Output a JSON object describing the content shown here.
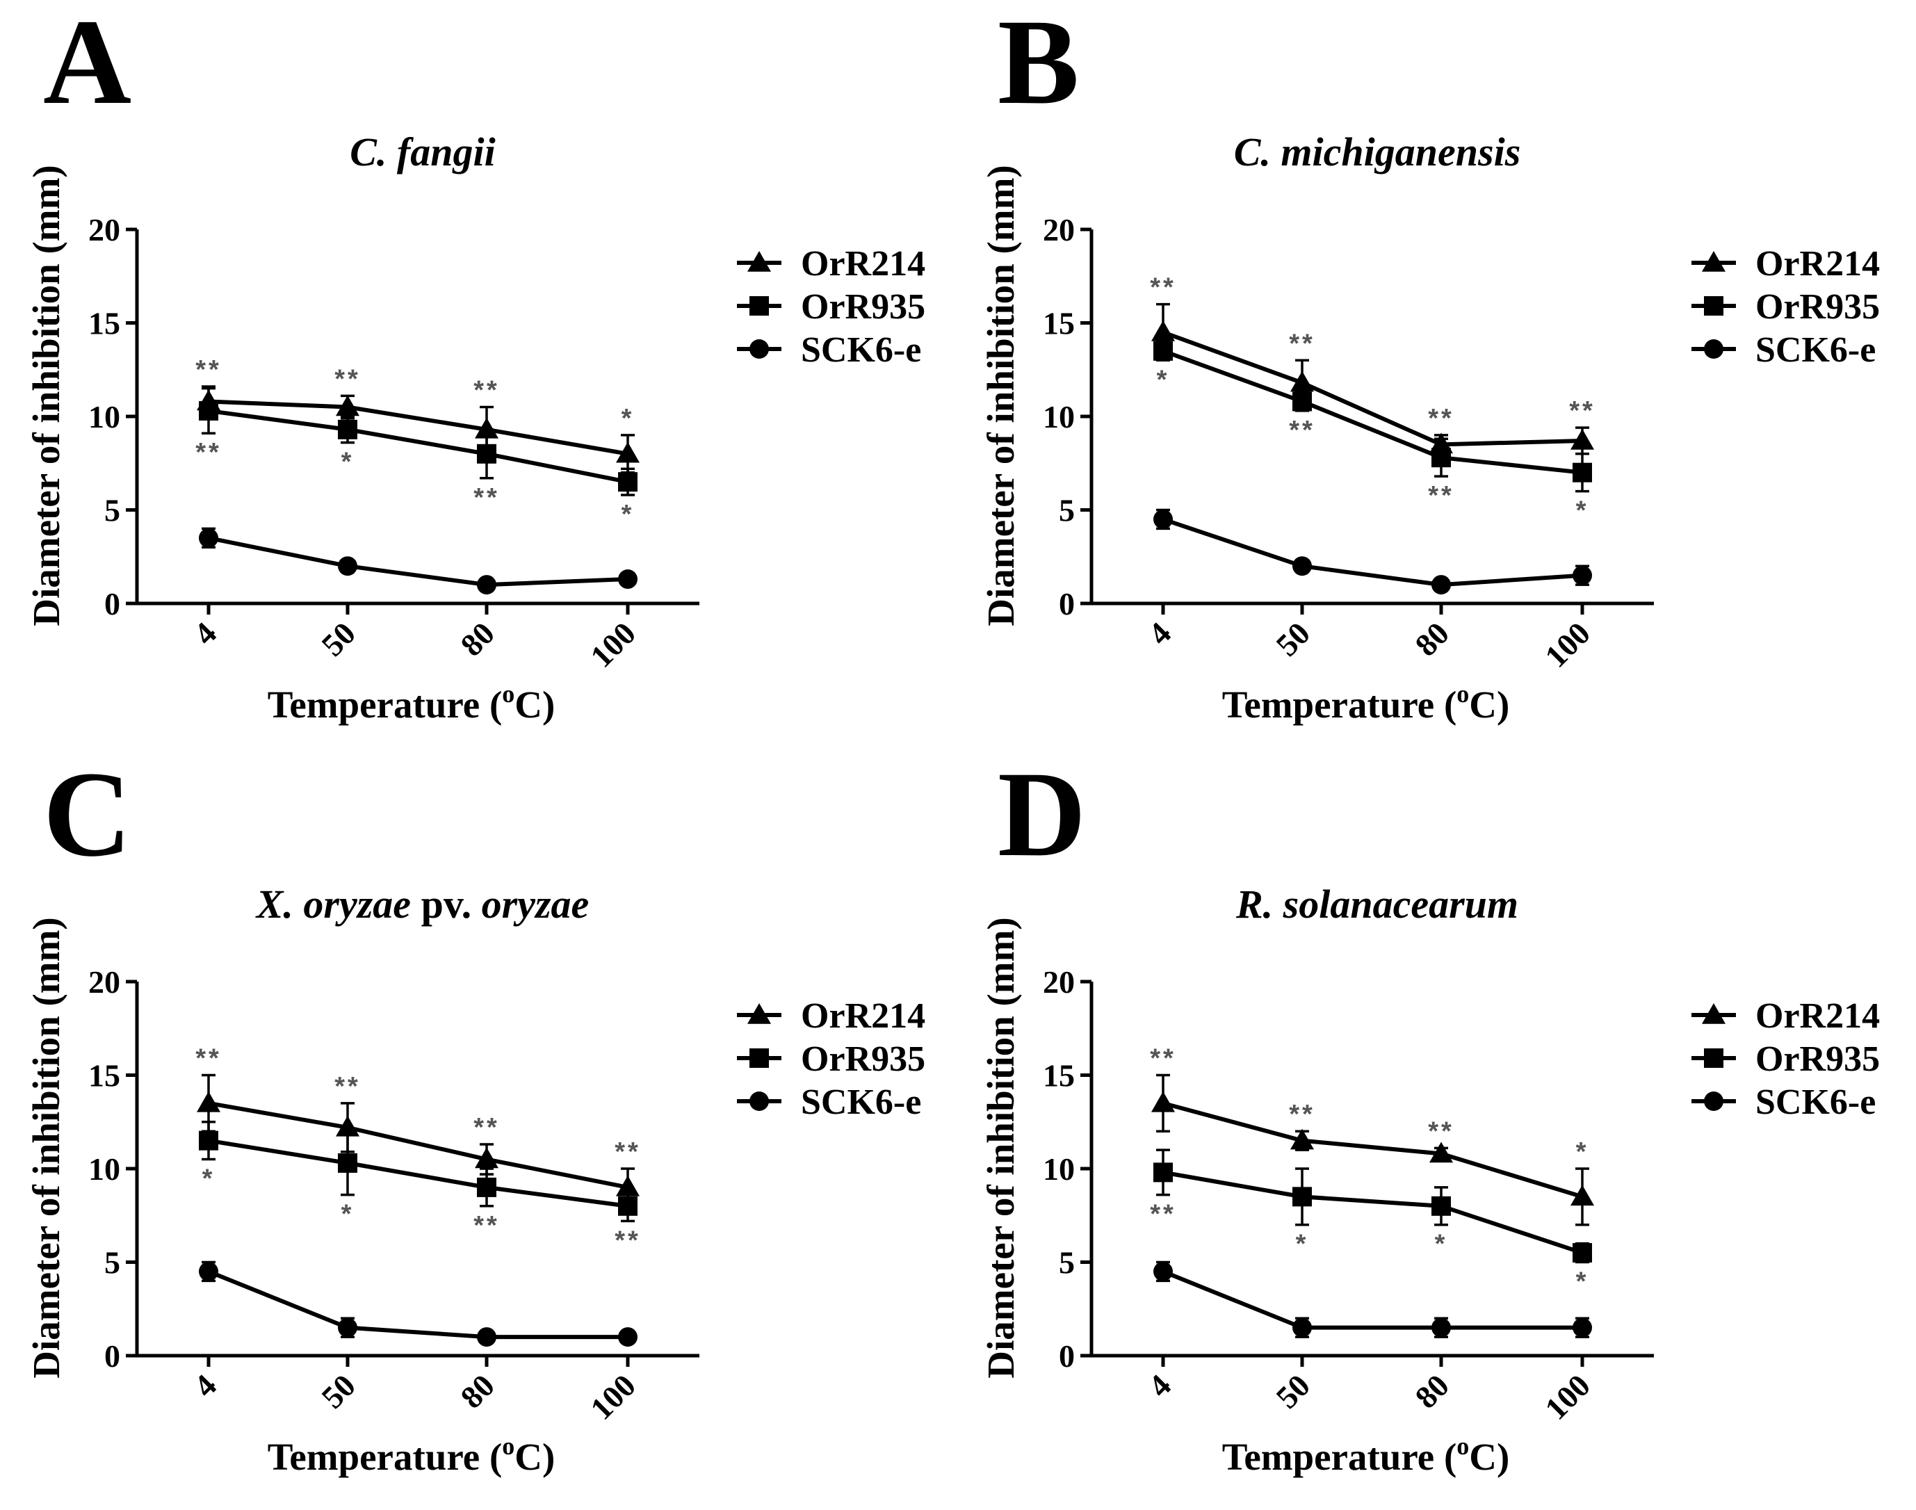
{
  "figure": {
    "colors": {
      "ink": "#000000",
      "significance": "#555555",
      "background": "#ffffff"
    }
  },
  "chart_data": [
    {
      "type": "line",
      "panel_letter": "A",
      "title": "C. fangii",
      "xlabel": "Temperature (oC)",
      "xlabel_parts": {
        "text": "Temperature (",
        "superscript": "o",
        "suffix": "C)"
      },
      "ylabel": "Diameter of inhibition (mm)",
      "categories": [
        "4",
        "50",
        "80",
        "100"
      ],
      "ylim": [
        0,
        20
      ],
      "yticks": [
        0,
        5,
        10,
        15,
        20
      ],
      "series": [
        {
          "name": "OrR214",
          "marker": "triangle",
          "values": [
            10.8,
            10.5,
            9.3,
            8.0
          ],
          "errors": [
            0.8,
            0.6,
            1.2,
            1.0
          ],
          "significance": [
            "**",
            "**",
            "**",
            "*"
          ],
          "sig_position": "above"
        },
        {
          "name": "OrR935",
          "marker": "square",
          "values": [
            10.3,
            9.3,
            8.0,
            6.5
          ],
          "errors": [
            1.2,
            0.7,
            1.3,
            0.7
          ],
          "significance": [
            "**",
            "*",
            "**",
            "*"
          ],
          "sig_position": "below"
        },
        {
          "name": "SCK6-e",
          "marker": "circle",
          "values": [
            3.5,
            2.0,
            1.0,
            1.3
          ],
          "errors": [
            0.5,
            0.2,
            0.2,
            0.2
          ],
          "significance": [],
          "sig_position": "none"
        }
      ]
    },
    {
      "type": "line",
      "panel_letter": "B",
      "title": "C. michiganensis",
      "xlabel": "Temperature (oC)",
      "xlabel_parts": {
        "text": "Temperature (",
        "superscript": "o",
        "suffix": "C)"
      },
      "ylabel": "Diameter of inhibition (mm)",
      "categories": [
        "4",
        "50",
        "80",
        "100"
      ],
      "ylim": [
        0,
        20
      ],
      "yticks": [
        0,
        5,
        10,
        15,
        20
      ],
      "series": [
        {
          "name": "OrR214",
          "marker": "triangle",
          "values": [
            14.5,
            11.8,
            8.5,
            8.7
          ],
          "errors": [
            1.5,
            1.2,
            0.5,
            0.7
          ],
          "significance": [
            "**",
            "**",
            "**",
            "**"
          ],
          "sig_position": "above"
        },
        {
          "name": "OrR935",
          "marker": "square",
          "values": [
            13.5,
            10.8,
            7.8,
            7.0
          ],
          "errors": [
            0.5,
            0.5,
            1.0,
            1.0
          ],
          "significance": [
            "*",
            "**",
            "**",
            "*"
          ],
          "sig_position": "below"
        },
        {
          "name": "SCK6-e",
          "marker": "circle",
          "values": [
            4.5,
            2.0,
            1.0,
            1.5
          ],
          "errors": [
            0.5,
            0.2,
            0.2,
            0.5
          ],
          "significance": [],
          "sig_position": "none"
        }
      ]
    },
    {
      "type": "line",
      "panel_letter": "C",
      "title": "X. oryzae pv. oryzae",
      "title_parts": [
        "X. oryzae",
        " pv. ",
        "oryzae"
      ],
      "xlabel": "Temperature (oC)",
      "xlabel_parts": {
        "text": "Temperature (",
        "superscript": "o",
        "suffix": "C)"
      },
      "ylabel": "Diameter of inhibition (mm)",
      "categories": [
        "4",
        "50",
        "80",
        "100"
      ],
      "ylim": [
        0,
        20
      ],
      "yticks": [
        0,
        5,
        10,
        15,
        20
      ],
      "series": [
        {
          "name": "OrR214",
          "marker": "triangle",
          "values": [
            13.5,
            12.2,
            10.5,
            9.0
          ],
          "errors": [
            1.5,
            1.3,
            0.8,
            1.0
          ],
          "significance": [
            "**",
            "**",
            "**",
            "**"
          ],
          "sig_position": "above"
        },
        {
          "name": "OrR935",
          "marker": "square",
          "values": [
            11.5,
            10.3,
            9.0,
            8.0
          ],
          "errors": [
            1.0,
            1.7,
            1.0,
            0.8
          ],
          "significance": [
            "*",
            "*",
            "**",
            "**"
          ],
          "sig_position": "below"
        },
        {
          "name": "SCK6-e",
          "marker": "circle",
          "values": [
            4.5,
            1.5,
            1.0,
            1.0
          ],
          "errors": [
            0.5,
            0.5,
            0.2,
            0.2
          ],
          "significance": [],
          "sig_position": "none"
        }
      ]
    },
    {
      "type": "line",
      "panel_letter": "D",
      "title": "R. solanacearum",
      "xlabel": "Temperature (oC)",
      "xlabel_parts": {
        "text": "Temperature (",
        "superscript": "o",
        "suffix": "C)"
      },
      "ylabel": "Diameter of inhibition (mm)",
      "categories": [
        "4",
        "50",
        "80",
        "100"
      ],
      "ylim": [
        0,
        20
      ],
      "yticks": [
        0,
        5,
        10,
        15,
        20
      ],
      "series": [
        {
          "name": "OrR214",
          "marker": "triangle",
          "values": [
            13.5,
            11.5,
            10.8,
            8.5
          ],
          "errors": [
            1.5,
            0.5,
            0.3,
            1.5
          ],
          "significance": [
            "**",
            "**",
            "**",
            "*"
          ],
          "sig_position": "above"
        },
        {
          "name": "OrR935",
          "marker": "square",
          "values": [
            9.8,
            8.5,
            8.0,
            5.5
          ],
          "errors": [
            1.2,
            1.5,
            1.0,
            0.5
          ],
          "significance": [
            "**",
            "*",
            "*",
            "*"
          ],
          "sig_position": "below"
        },
        {
          "name": "SCK6-e",
          "marker": "circle",
          "values": [
            4.5,
            1.5,
            1.5,
            1.5
          ],
          "errors": [
            0.5,
            0.5,
            0.5,
            0.5
          ],
          "significance": [],
          "sig_position": "none"
        }
      ]
    }
  ]
}
